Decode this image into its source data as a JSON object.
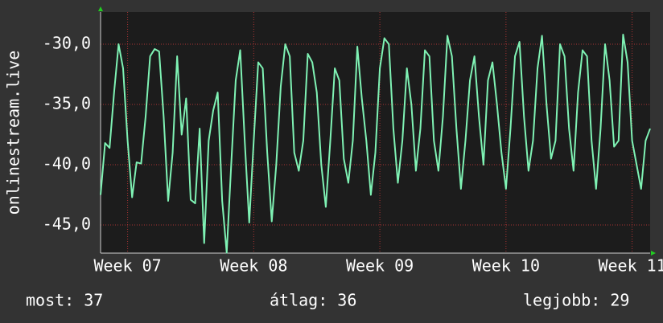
{
  "chart_data": {
    "type": "line",
    "y_label": "onlinestream.live",
    "color": "#7ff2b4",
    "grid": true,
    "x": [
      0,
      0.25,
      0.5,
      0.75,
      1,
      1.25,
      1.5,
      1.75,
      2,
      2.25,
      2.5,
      2.75,
      3,
      3.25,
      3.5,
      3.75,
      4,
      4.25,
      4.5,
      4.75,
      5,
      5.25,
      5.5,
      5.75,
      6,
      6.25,
      6.5,
      6.75,
      7,
      7.25,
      7.5,
      7.75,
      8,
      8.25,
      8.5,
      8.75,
      9,
      9.25,
      9.5,
      9.75,
      10,
      10.25,
      10.5,
      10.75,
      11,
      11.25,
      11.5,
      11.75,
      12,
      12.25,
      12.5,
      12.75,
      13,
      13.25,
      13.5,
      13.75,
      14,
      14.25,
      14.5,
      14.75,
      15,
      15.25,
      15.5,
      15.75,
      16,
      16.25,
      16.5,
      16.75,
      17,
      17.25,
      17.5,
      17.75,
      18,
      18.25,
      18.5,
      18.75,
      19,
      19.25,
      19.5,
      19.75,
      20,
      20.25,
      20.5,
      20.75,
      21,
      21.25,
      21.5,
      21.75,
      22,
      22.25,
      22.5,
      22.75,
      23,
      23.25,
      23.5,
      23.75,
      24,
      24.25,
      24.5,
      24.75,
      25,
      25.25,
      25.5,
      25.75,
      26,
      26.25,
      26.5,
      26.75,
      27,
      27.25,
      27.5,
      27.75,
      28,
      28.25,
      28.5,
      28.75,
      29,
      29.25,
      29.5,
      29.75,
      30,
      30.25,
      30.5
    ],
    "values": [
      -42.5,
      -38.2,
      -38.6,
      -34,
      -30,
      -32,
      -38,
      -42.7,
      -39.8,
      -39.9,
      -36,
      -31,
      -30.4,
      -30.6,
      -36,
      -43,
      -39,
      -31,
      -37.5,
      -34.5,
      -42.9,
      -43.2,
      -37,
      -46.5,
      -38,
      -35.5,
      -34,
      -43,
      -47.3,
      -40,
      -33,
      -30.5,
      -38,
      -44.8,
      -38,
      -31.5,
      -32,
      -39,
      -44.7,
      -40,
      -33.5,
      -30,
      -31,
      -39,
      -40.5,
      -38,
      -30.8,
      -31.5,
      -34,
      -40,
      -43.5,
      -38,
      -32,
      -33,
      -39.5,
      -41.5,
      -38,
      -30.2,
      -34.5,
      -38,
      -42.5,
      -39,
      -32,
      -29.5,
      -30,
      -37,
      -41.5,
      -38,
      -32,
      -35,
      -40.5,
      -37,
      -30.5,
      -31,
      -38,
      -40.5,
      -36,
      -29.3,
      -31,
      -37,
      -42,
      -38,
      -33,
      -31,
      -36,
      -40,
      -33,
      -31.5,
      -35,
      -39,
      -42,
      -37,
      -31,
      -29.8,
      -36,
      -40.5,
      -38,
      -32,
      -29.3,
      -35,
      -39.5,
      -38,
      -30,
      -31,
      -37,
      -40.5,
      -34,
      -30.5,
      -31,
      -38,
      -42,
      -37,
      -30,
      -33,
      -38.5,
      -38,
      -29.2,
      -31.5,
      -38,
      -40,
      -42,
      -38,
      -37
    ],
    "xlim": [
      0,
      30.5
    ],
    "xticks": [
      {
        "value": 1.5,
        "label": "Week 07"
      },
      {
        "value": 8.5,
        "label": "Week 08"
      },
      {
        "value": 15.5,
        "label": "Week 09"
      },
      {
        "value": 22.5,
        "label": "Week 10"
      },
      {
        "value": 29.5,
        "label": "Week 11"
      }
    ],
    "ylim": [
      -47.33,
      -27.33
    ],
    "yticks": [
      {
        "value": -45,
        "label": "-45,0"
      },
      {
        "value": -40,
        "label": "-40,0"
      },
      {
        "value": -35,
        "label": "-35,0"
      },
      {
        "value": -30,
        "label": "-30,0"
      }
    ]
  },
  "summary": [
    "most: 37",
    "átlag: 36",
    "legjobb: 29"
  ]
}
